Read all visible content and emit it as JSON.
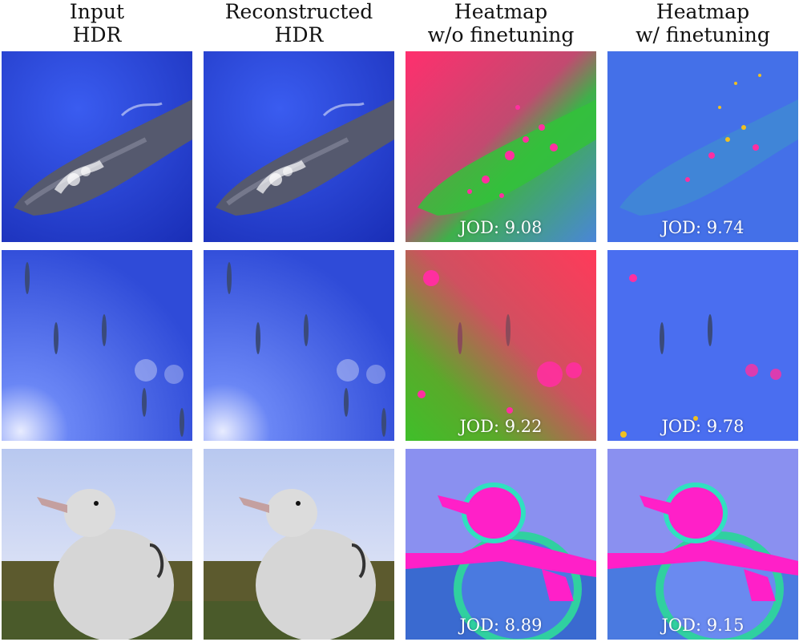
{
  "columns": [
    {
      "line1": "Input",
      "line2": "HDR"
    },
    {
      "line1": "Reconstructed",
      "line2": "HDR"
    },
    {
      "line1": "Heatmap",
      "line2": "w/o finetuning"
    },
    {
      "line1": "Heatmap",
      "line2": "w/ finetuning"
    }
  ],
  "rows": [
    {
      "jod_wo": "JOD: 9.08",
      "jod_w": "JOD: 9.74"
    },
    {
      "jod_wo": "JOD: 9.22",
      "jod_w": "JOD: 9.78"
    },
    {
      "jod_wo": "JOD: 8.89",
      "jod_w": "JOD: 9.15"
    }
  ]
}
